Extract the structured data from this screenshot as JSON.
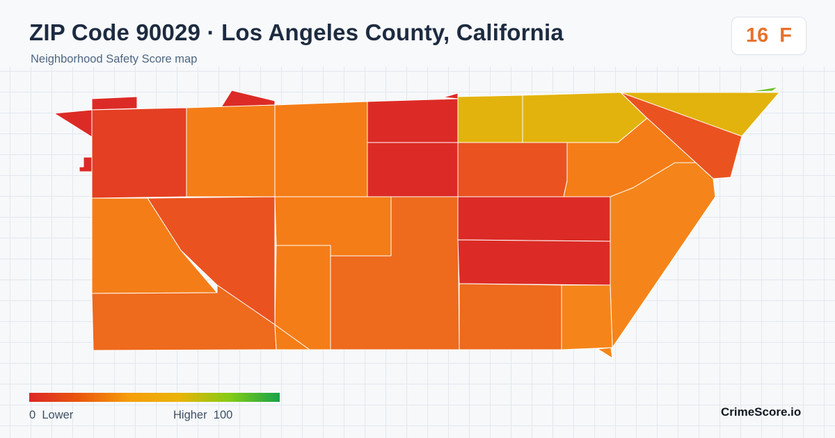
{
  "header": {
    "title": "ZIP Code 90029 · Los Angeles County, California",
    "subtitle": "Neighborhood Safety Score map"
  },
  "score_badge": {
    "score": "16",
    "grade": "F",
    "color": "#e8702a"
  },
  "legend": {
    "low_label": "0  Lower",
    "high_label": "Higher  100",
    "scale_min": 0,
    "scale_max": 100,
    "gradient_colors": [
      "#dc2626",
      "#ea580c",
      "#f59e0b",
      "#eab308",
      "#84cc16",
      "#16a34a"
    ]
  },
  "brand": {
    "name": "CrimeScore.io"
  },
  "map": {
    "region_colors": {
      "red": "#dc2b26",
      "red_orange": "#e43f22",
      "orange_red": "#ea5320",
      "deep_orange": "#ee6a1d",
      "orange": "#f57d17",
      "amber": "#f5851a",
      "yellow": "#e2b30c",
      "green": "#6ec22a"
    }
  }
}
